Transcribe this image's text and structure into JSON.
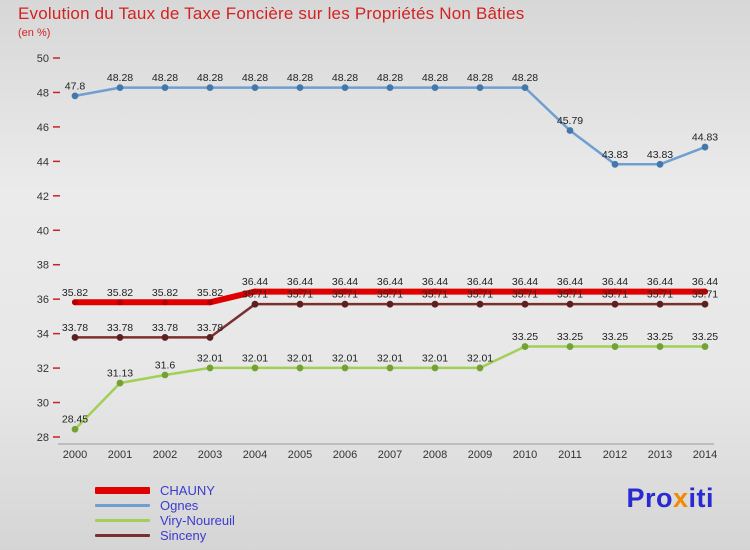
{
  "header": {
    "title": "Evolution du Taux de Taxe Foncière sur les Propriétés Non Bâties",
    "subtitle": "(en %)"
  },
  "chart_data": {
    "type": "line",
    "x": [
      2000,
      2001,
      2002,
      2003,
      2004,
      2005,
      2006,
      2007,
      2008,
      2009,
      2010,
      2011,
      2012,
      2013,
      2014
    ],
    "ylim": [
      28,
      50
    ],
    "yticks": [
      28,
      30,
      32,
      34,
      36,
      38,
      40,
      42,
      44,
      46,
      48,
      50
    ],
    "grid": false,
    "legend_position": "bottom-left",
    "axis": {
      "tick_color": "#cc2222",
      "label_color": "#333333",
      "baseline_color": "#9a9a9a"
    },
    "draw_order": [
      "Ognes",
      "Viry-Noureuil",
      "Sinceny",
      "CHAUNY"
    ],
    "series": [
      {
        "name": "CHAUNY",
        "color": "#e00000",
        "marker_color": "#b70000",
        "line_width": 6,
        "values": [
          35.82,
          35.82,
          35.82,
          35.82,
          36.44,
          36.44,
          36.44,
          36.44,
          36.44,
          36.44,
          36.44,
          36.44,
          36.44,
          36.44,
          36.44
        ]
      },
      {
        "name": "Ognes",
        "color": "#6f9fd0",
        "marker_color": "#4478ab",
        "line_width": 2.5,
        "values": [
          47.8,
          48.28,
          48.28,
          48.28,
          48.28,
          48.28,
          48.28,
          48.28,
          48.28,
          48.28,
          48.28,
          45.79,
          43.83,
          43.83,
          44.83
        ]
      },
      {
        "name": "Viry-Noureuil",
        "color": "#a2cf56",
        "marker_color": "#74a232",
        "line_width": 2.5,
        "values": [
          28.45,
          31.13,
          31.6,
          32.01,
          32.01,
          32.01,
          32.01,
          32.01,
          32.01,
          32.01,
          33.25,
          33.25,
          33.25,
          33.25,
          33.25
        ]
      },
      {
        "name": "Sinceny",
        "color": "#7b3030",
        "marker_color": "#5c2020",
        "line_width": 2.5,
        "values": [
          33.78,
          33.78,
          33.78,
          33.78,
          35.71,
          35.71,
          35.71,
          35.71,
          35.71,
          35.71,
          35.71,
          35.71,
          35.71,
          35.71,
          35.71
        ]
      }
    ]
  },
  "logo": {
    "parts": [
      {
        "text": "Pro",
        "color": "#2a2ad2"
      },
      {
        "text": "x",
        "color": "#f28a00"
      },
      {
        "text": "iti",
        "color": "#2a2ad2"
      }
    ]
  }
}
